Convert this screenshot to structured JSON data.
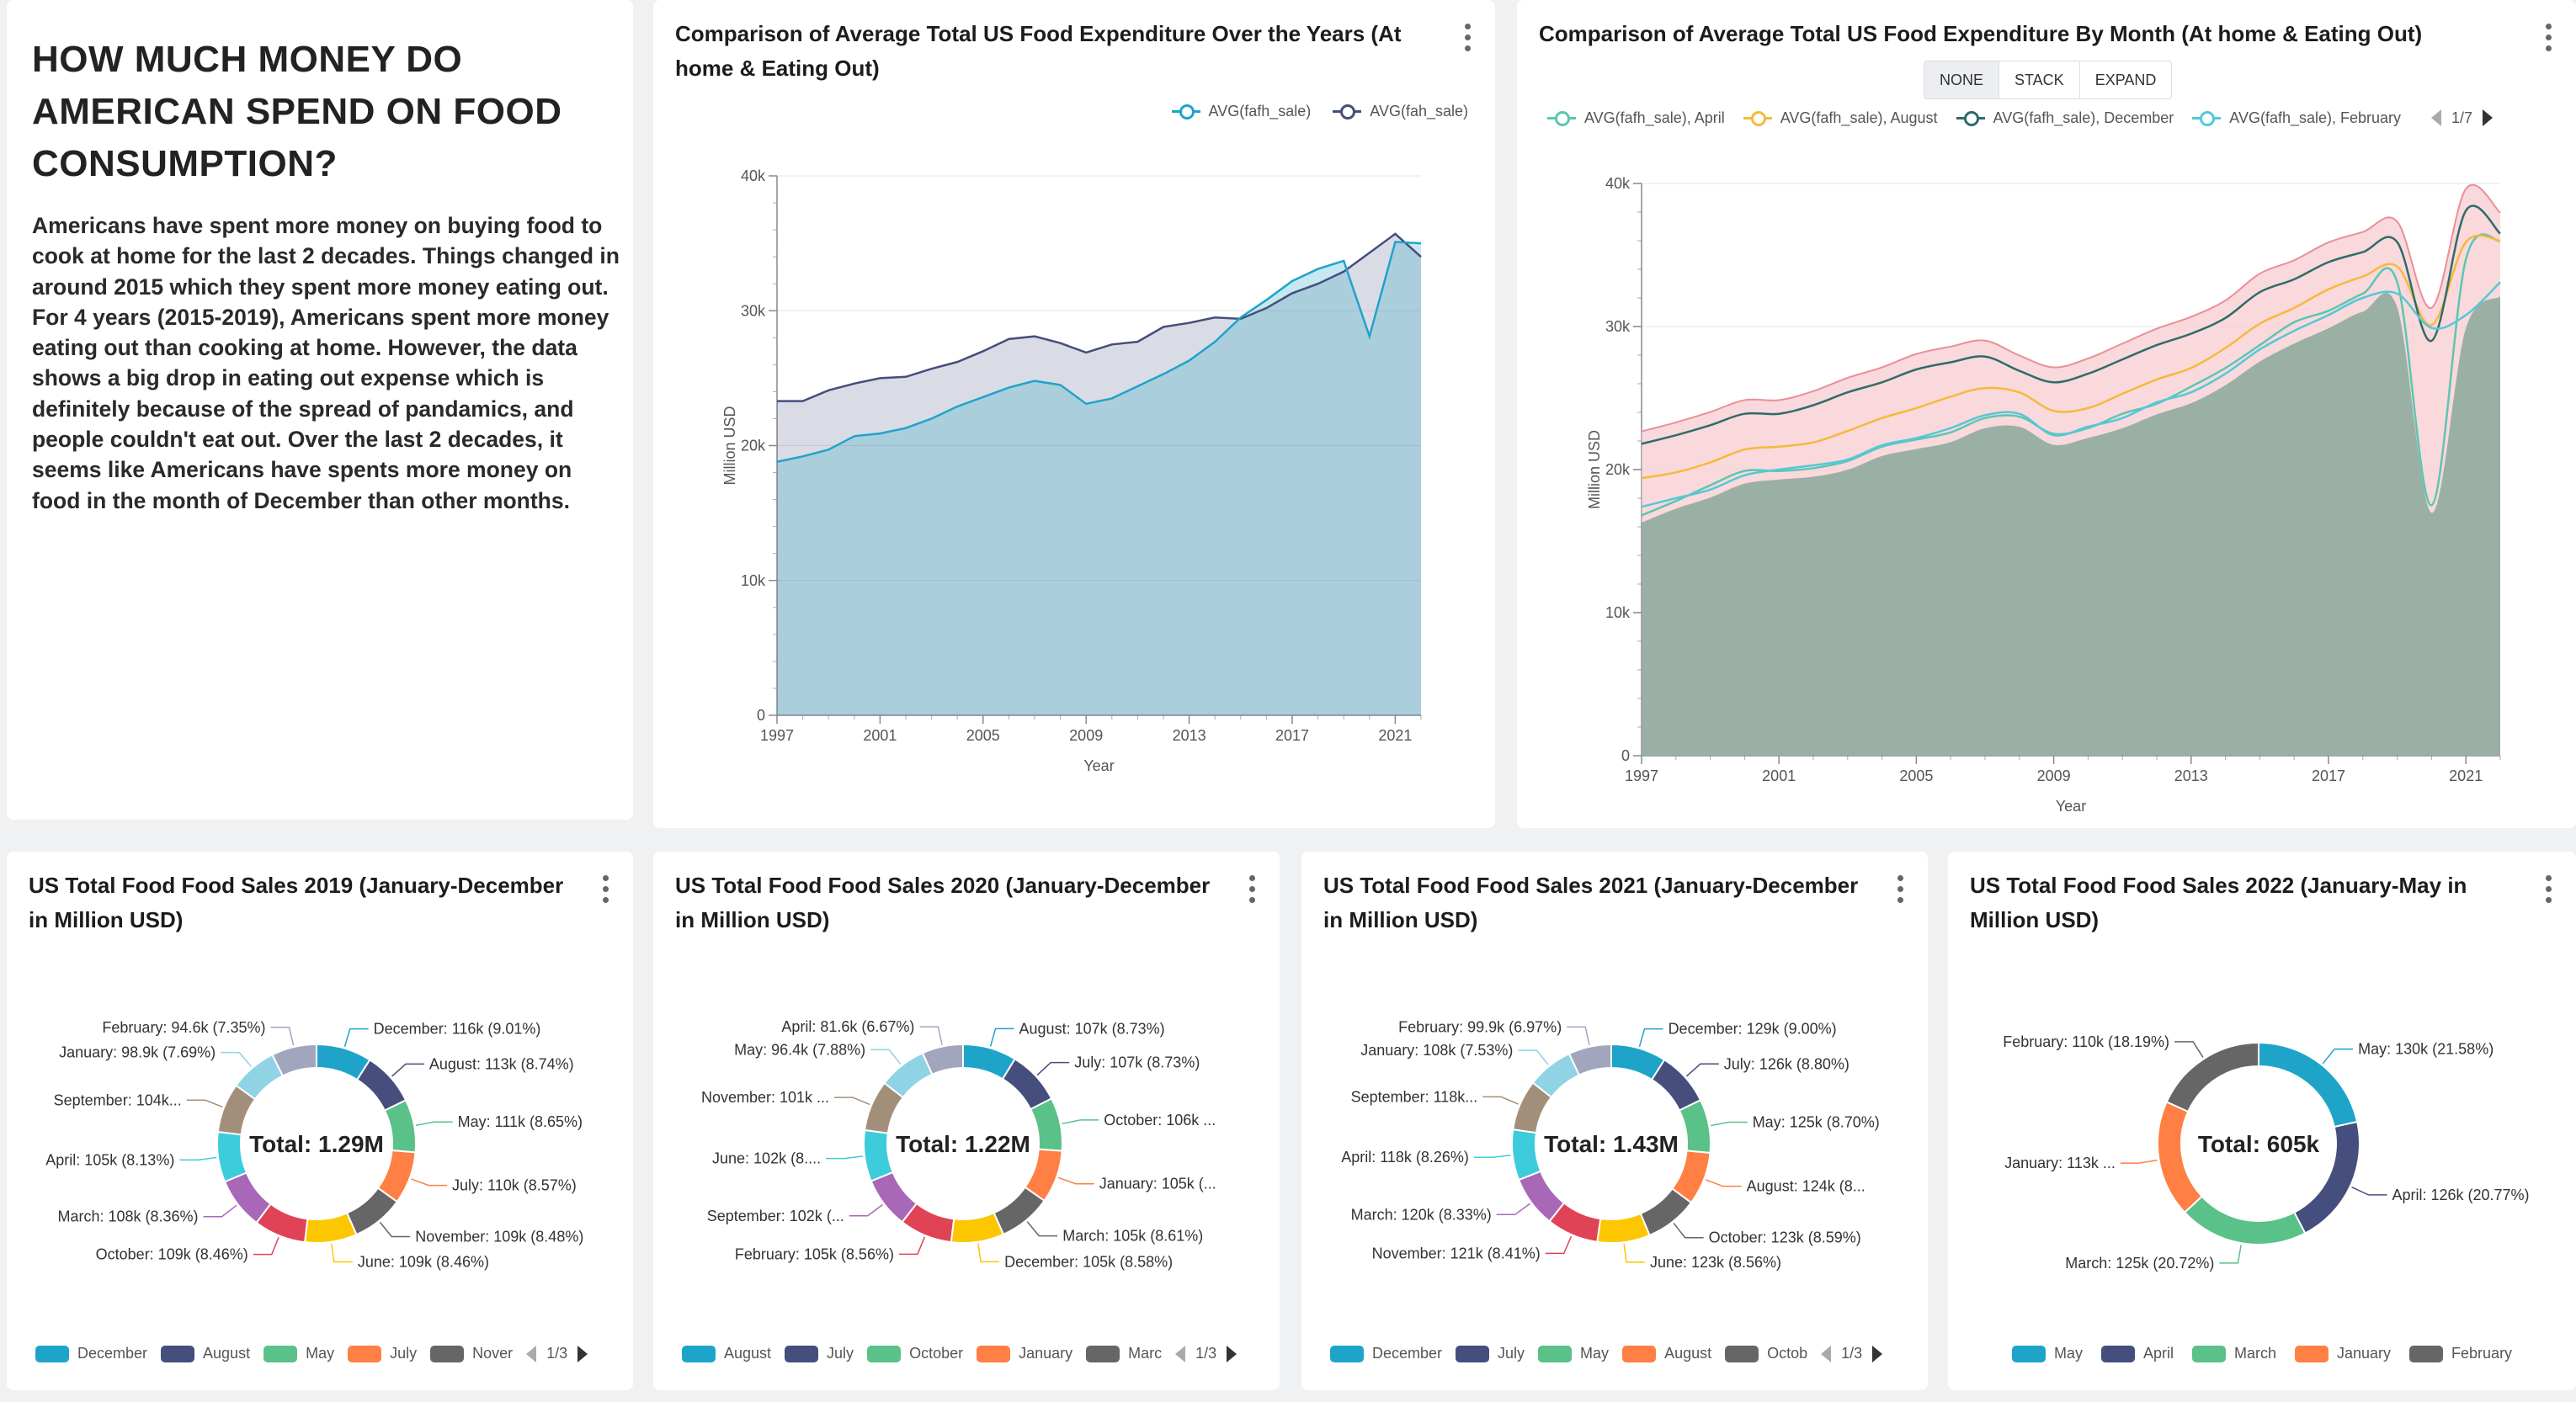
{
  "intro": {
    "title": "HOW MUCH MONEY DO AMERICAN SPEND ON FOOD CONSUMPTION?",
    "body": "Americans have spent more money on buying food to cook at home for the last 2 decades. Things changed in around 2015 which they spent more money eating out. For 4 years (2015-2019), Americans spent more money eating out than cooking at home. However, the data shows a big drop in eating out expense which is definitely because of the spread of pandamics, and people couldn't eat out. Over the last 2 decades, it seems like Americans have spents more money on food in the month of December than other months."
  },
  "colors": {
    "teal": "#1fa4c9",
    "navy": "#454e7c",
    "green": "#5ac189",
    "orange": "#ff7f44",
    "gray": "#666666",
    "yellow": "#fcc700",
    "red": "#e04355",
    "purple": "#a868b7",
    "cyan": "#3cccdb",
    "brown": "#a38f79",
    "lightblue": "#8fd3e4",
    "lavender": "#a1a6bd"
  },
  "chart_years": {
    "title": "Comparison of Average Total US Food Expenditure Over the Years (At home & Eating Out)",
    "legend": [
      "AVG(fafh_sale)",
      "AVG(fah_sale)"
    ],
    "ylabel": "Million USD",
    "xlabel": "Year",
    "yticks": [
      "0",
      "10k",
      "20k",
      "30k",
      "40k"
    ],
    "xticks": [
      "1997",
      "2001",
      "2005",
      "2009",
      "2013",
      "2017",
      "2021"
    ]
  },
  "chart_month": {
    "title": "Comparison of Average Total US Food Expenditure By Month (At home & Eating Out)",
    "modes": [
      "NONE",
      "STACK",
      "EXPAND"
    ],
    "active_mode": "NONE",
    "legend": [
      "AVG(fafh_sale), April",
      "AVG(fafh_sale), August",
      "AVG(fafh_sale), December",
      "AVG(fafh_sale), February"
    ],
    "pager": "1/7",
    "ylabel": "Million USD",
    "xlabel": "Year",
    "yticks": [
      "0",
      "10k",
      "20k",
      "30k",
      "40k"
    ],
    "xticks": [
      "1997",
      "2001",
      "2005",
      "2009",
      "2013",
      "2017",
      "2021"
    ]
  },
  "pies": [
    {
      "title": "US Total Food Food Sales 2019 (January-December in Million USD)",
      "total": "Total: 1.29M",
      "legend": [
        "December",
        "August",
        "May",
        "July",
        "Nover"
      ],
      "pager": "1/3"
    },
    {
      "title": "US Total Food Food Sales 2020 (January-December in Million USD)",
      "total": "Total: 1.22M",
      "legend": [
        "August",
        "July",
        "October",
        "January",
        "Marc"
      ],
      "pager": "1/3"
    },
    {
      "title": "US Total Food Food Sales 2021 (January-December in Million USD)",
      "total": "Total: 1.43M",
      "legend": [
        "December",
        "July",
        "May",
        "August",
        "Octob"
      ],
      "pager": "1/3"
    },
    {
      "title": "US Total Food Food Sales 2022 (January-May in Million USD)",
      "total": "Total: 605k",
      "legend": [
        "May",
        "April",
        "March",
        "January",
        "February"
      ],
      "pager": ""
    }
  ],
  "chart_data": [
    {
      "type": "area",
      "title": "Comparison of Average Total US Food Expenditure Over the Years (At home & Eating Out)",
      "xlabel": "Year",
      "ylabel": "Million USD",
      "ylim": [
        0,
        40000
      ],
      "x": [
        1997,
        1998,
        1999,
        2000,
        2001,
        2002,
        2003,
        2004,
        2005,
        2006,
        2007,
        2008,
        2009,
        2010,
        2011,
        2012,
        2013,
        2014,
        2015,
        2016,
        2017,
        2018,
        2019,
        2020,
        2021,
        2022
      ],
      "series": [
        {
          "name": "AVG(fafh_sale)",
          "values": [
            18800,
            19200,
            19700,
            20700,
            20900,
            21300,
            22000,
            22900,
            23600,
            24300,
            24800,
            24500,
            23100,
            23500,
            24400,
            25300,
            26300,
            27700,
            29500,
            30800,
            32200,
            33100,
            33700,
            28100,
            35100,
            35000
          ]
        },
        {
          "name": "AVG(fah_sale)",
          "values": [
            23300,
            23300,
            24100,
            24600,
            25000,
            25100,
            25700,
            26200,
            27000,
            27900,
            28100,
            27600,
            26900,
            27500,
            27700,
            28800,
            29100,
            29500,
            29400,
            30200,
            31300,
            32000,
            32900,
            34300,
            35700,
            34000
          ]
        }
      ],
      "legend_position": "top-right",
      "grid": true
    },
    {
      "type": "area",
      "title": "Comparison of Average Total US Food Expenditure By Month (At home & Eating Out)",
      "xlabel": "Year",
      "ylabel": "Million USD",
      "ylim": [
        0,
        40000
      ],
      "x_range": [
        1997,
        2022
      ],
      "series": [
        {
          "name": "AVG(fafh_sale), April",
          "values": [
            16800,
            17800,
            18900,
            19900,
            19900,
            20100,
            20600,
            21600,
            22100,
            22600,
            23600,
            23700,
            22500,
            22900,
            23900,
            24600,
            25800,
            27100,
            28700,
            30300,
            31100,
            32300,
            33100,
            17500,
            34700,
            36000
          ]
        },
        {
          "name": "AVG(fafh_sale), August",
          "values": [
            19400,
            19800,
            20500,
            21400,
            21600,
            21900,
            22700,
            23600,
            24300,
            25100,
            25700,
            25400,
            24100,
            24300,
            25300,
            26300,
            27100,
            28500,
            30200,
            31300,
            32600,
            33500,
            34200,
            30100,
            35900,
            36000
          ]
        },
        {
          "name": "AVG(fafh_sale), December",
          "values": [
            21800,
            22400,
            23100,
            23900,
            23900,
            24500,
            25400,
            26100,
            27000,
            27500,
            27900,
            26900,
            26100,
            26700,
            27700,
            28700,
            29500,
            30600,
            32400,
            33300,
            34500,
            35200,
            35900,
            29000,
            38100,
            36500
          ]
        },
        {
          "name": "AVG(fafh_sale), February",
          "values": [
            17400,
            18000,
            18600,
            19600,
            20000,
            20300,
            20700,
            21700,
            22200,
            22900,
            23800,
            23900,
            22400,
            23000,
            23600,
            24700,
            25400,
            26700,
            28400,
            29700,
            30800,
            32000,
            32300,
            29900,
            30800,
            33100
          ]
        }
      ]
    },
    {
      "type": "pie",
      "title": "US Total Food Food Sales 2019 (January-December in Million USD)",
      "total": "1.29M",
      "labels": [
        "December",
        "August",
        "May",
        "July",
        "November",
        "June",
        "October",
        "March",
        "April",
        "September",
        "January",
        "February"
      ],
      "values": [
        116,
        113,
        111,
        110,
        109,
        109,
        109,
        108,
        105,
        104,
        98.9,
        94.6
      ],
      "display": [
        "December: 116k (9.01%)",
        "August: 113k (8.74%)",
        "May: 111k (8.65%)",
        "July: 110k (8.57%)",
        "November: 109k (8.48%)",
        "June: 109k (8.46%)",
        "October: 109k (8.46%)",
        "March: 108k (8.36%)",
        "April: 105k (8.13%)",
        "September: 104k...",
        "January: 98.9k (7.69%)",
        "February: 94.6k (7.35%)"
      ]
    },
    {
      "type": "pie",
      "title": "US Total Food Food Sales 2020 (January-December in Million USD)",
      "total": "1.22M",
      "labels": [
        "August",
        "July",
        "October",
        "January",
        "March",
        "December",
        "February",
        "September",
        "June",
        "November",
        "May",
        "April"
      ],
      "values": [
        107,
        107,
        106,
        105,
        105,
        105,
        105,
        102,
        102,
        101,
        96.4,
        81.6
      ],
      "display": [
        "August: 107k (8.73%)",
        "July: 107k (8.73%)",
        "October: 106k ...",
        "January: 105k (...",
        "March: 105k (8.61%)",
        "December: 105k (8.58%)",
        "February: 105k (8.56%)",
        "September: 102k (...",
        "June: 102k (8....",
        "November: 101k ...",
        "May: 96.4k (7.88%)",
        "April: 81.6k (6.67%)"
      ]
    },
    {
      "type": "pie",
      "title": "US Total Food Food Sales 2021 (January-December in Million USD)",
      "total": "1.43M",
      "labels": [
        "December",
        "July",
        "May",
        "August",
        "October",
        "June",
        "November",
        "March",
        "April",
        "September",
        "January",
        "February"
      ],
      "values": [
        129,
        126,
        125,
        124,
        123,
        123,
        121,
        120,
        118,
        118,
        108,
        99.9
      ],
      "display": [
        "December: 129k (9.00%)",
        "July: 126k (8.80%)",
        "May: 125k (8.70%)",
        "August: 124k (8...",
        "October: 123k (8.59%)",
        "June: 123k (8.56%)",
        "November: 121k (8.41%)",
        "March: 120k (8.33%)",
        "April: 118k (8.26%)",
        "September: 118k...",
        "January: 108k (7.53%)",
        "February: 99.9k (6.97%)"
      ]
    },
    {
      "type": "pie",
      "title": "US Total Food Food Sales 2022 (January-May in Million USD)",
      "total": "605k",
      "labels": [
        "May",
        "April",
        "March",
        "January",
        "February"
      ],
      "values": [
        130,
        126,
        125,
        113,
        110
      ],
      "display": [
        "May: 130k (21.58%)",
        "April: 126k (20.77%)",
        "March: 125k (20.72%)",
        "January: 113k ...",
        "February: 110k (18.19%)"
      ]
    }
  ]
}
